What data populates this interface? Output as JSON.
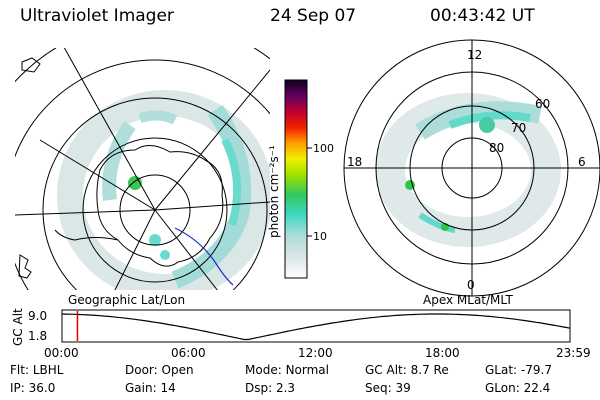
{
  "header": {
    "title": "Ultraviolet Imager",
    "date": "24 Sep 07",
    "time": "00:43:42 UT"
  },
  "left_map": {
    "label": "Geographic Lat/Lon"
  },
  "right_map": {
    "label": "Apex MLat/MLT",
    "mlt_labels": {
      "top": "12",
      "left": "18",
      "right": "6",
      "bottom": "0"
    },
    "lat_labels": [
      "60",
      "70",
      "80"
    ]
  },
  "colorbar": {
    "unit_label": "photon cm⁻²s⁻¹",
    "ticks": [
      "100",
      "10"
    ]
  },
  "timeline": {
    "ylabel": "GC Alt",
    "yticks": [
      "9.0",
      "1.8"
    ],
    "xticks": [
      "00:00",
      "06:00",
      "12:00",
      "18:00",
      "23:59"
    ],
    "marker_time_hours": 0.73
  },
  "footer": {
    "rows": [
      [
        {
          "label": "Flt:",
          "value": "LBHL"
        },
        {
          "label": "Door:",
          "value": "Open"
        },
        {
          "label": "Mode:",
          "value": "Normal"
        },
        {
          "label": "GC Alt:",
          "value": "8.7 Re"
        },
        {
          "label": "GLat:",
          "value": "-79.7"
        }
      ],
      [
        {
          "label": "IP:",
          "value": "36.0"
        },
        {
          "label": "Gain:",
          "value": "14"
        },
        {
          "label": "Dsp:",
          "value": "2.3"
        },
        {
          "label": "Seq:",
          "value": "39"
        },
        {
          "label": "GLon:",
          "value": "22.4"
        }
      ]
    ]
  },
  "colors": {
    "aurora_low": "#d8e4e4",
    "aurora_mid": "#58d8c8",
    "aurora_high": "#28c040",
    "marker": "#e00000"
  }
}
